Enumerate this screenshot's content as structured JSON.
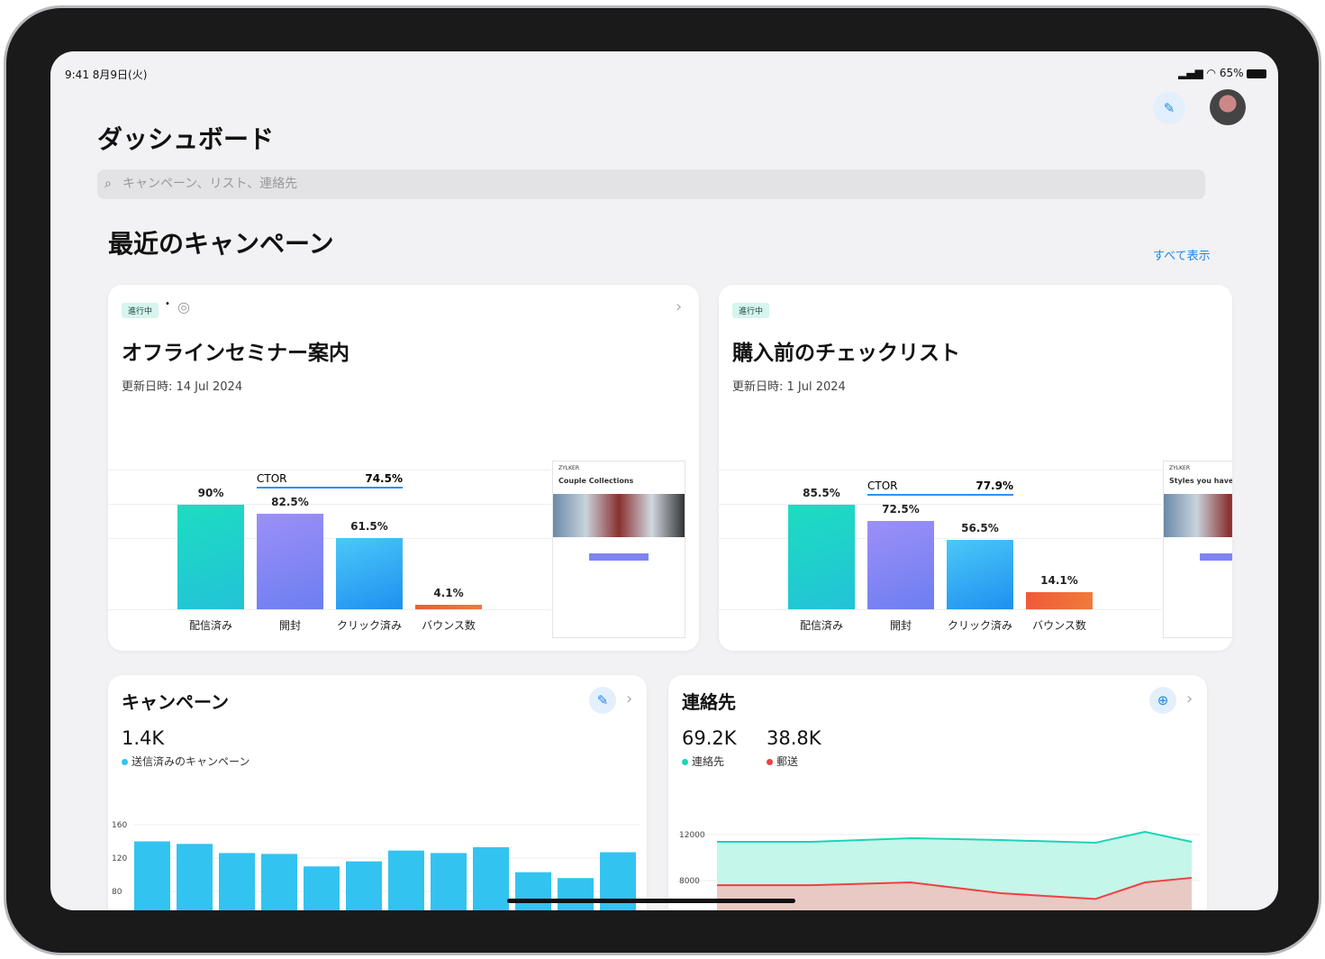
{
  "status_bar": {
    "time": "9:41",
    "date": "8月9日(火)",
    "battery": "65%"
  },
  "header": {
    "title": "ダッシュボード",
    "search_placeholder": "キャンペーン、リスト、連絡先"
  },
  "recent": {
    "title": "最近のキャンペーン",
    "view_all": "すべて表示"
  },
  "campaign_cards": [
    {
      "status": "進行中",
      "title": "オフラインセミナー案内",
      "updated": "更新日時: 14 Jul 2024",
      "ctor_label": "CTOR",
      "ctor_value": "74.5%",
      "preview": {
        "brand": "ZYLKER",
        "heading": "Couple Collections"
      },
      "chart_data": {
        "type": "bar",
        "categories": [
          "配信済み",
          "開封",
          "クリック済み",
          "バウンス数"
        ],
        "values": [
          90,
          82.5,
          61.5,
          4.1
        ],
        "labels": [
          "90%",
          "82.5%",
          "61.5%",
          "4.1%"
        ]
      }
    },
    {
      "status": "進行中",
      "title": "購入前のチェックリスト",
      "updated": "更新日時: 1 Jul 2024",
      "ctor_label": "CTOR",
      "ctor_value": "77.9%",
      "preview": {
        "brand": "ZYLKER",
        "heading": "Styles you have new sea"
      },
      "chart_data": {
        "type": "bar",
        "categories": [
          "配信済み",
          "開封",
          "クリック済み",
          "バウンス数"
        ],
        "values": [
          85.5,
          72.5,
          56.5,
          14.1
        ],
        "labels": [
          "85.5%",
          "72.5%",
          "56.5%",
          "14.1%"
        ]
      }
    }
  ],
  "campaigns_widget": {
    "title": "キャンペーン",
    "stat": "1.4K",
    "legend": "送信済みのキャンペーン",
    "chart_data": {
      "type": "bar",
      "yticks": [
        "160",
        "120",
        "80"
      ],
      "values": [
        140,
        137,
        126,
        125,
        110,
        116,
        129,
        126,
        133,
        103,
        96,
        127
      ],
      "color": "#33c3f0"
    }
  },
  "contacts_widget": {
    "title": "連絡先",
    "stat1": "69.2K",
    "legend1": "連絡先",
    "stat2": "38.8K",
    "legend2": "郵送",
    "chart_data": {
      "type": "area",
      "yticks": [
        "12000",
        "8000"
      ],
      "series": [
        {
          "name": "連絡先",
          "values": [
            11370,
            11370,
            11690,
            11530,
            11290,
            12240,
            11370
          ],
          "color": "#1dd3b8"
        },
        {
          "name": "郵送",
          "values": [
            7600,
            7600,
            7840,
            6900,
            6400,
            7840,
            8240
          ],
          "color": "#f04040"
        }
      ]
    }
  }
}
